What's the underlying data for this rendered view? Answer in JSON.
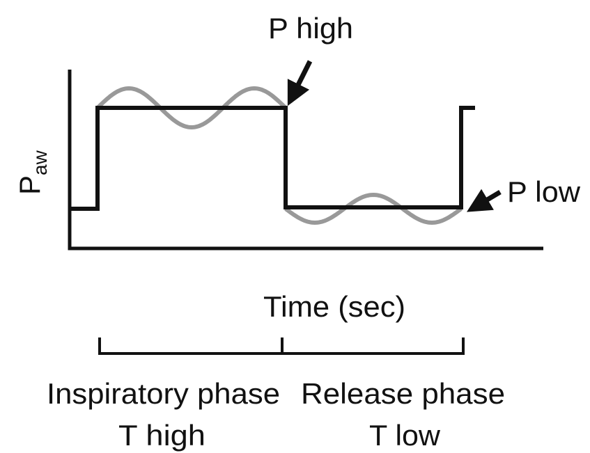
{
  "labels": {
    "p_high": "P high",
    "p_low": "P low",
    "y_axis": "P",
    "y_axis_subscript": "aw",
    "x_axis": "Time (sec)",
    "inspiratory_phase": "Inspiratory phase",
    "t_high": "T high",
    "release_phase": "Release phase",
    "t_low": "T low"
  }
}
